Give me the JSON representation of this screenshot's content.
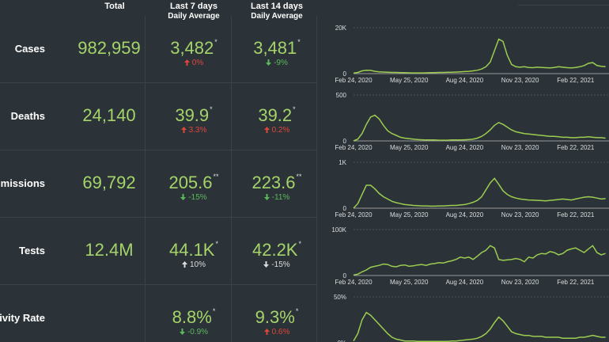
{
  "header": {
    "total": "Total",
    "last7": "Last 7 days",
    "last7_sub": "Daily Average",
    "last14": "Last 14 days",
    "last14_sub": "Daily Average"
  },
  "rows": [
    {
      "label": "Cases",
      "total": "982,959",
      "last7": {
        "value": "3,482",
        "note": "*",
        "change": "0%",
        "direction": "up",
        "change_color": "#e0453a"
      },
      "last14": {
        "value": "3,481",
        "note": "*",
        "change": "-9%",
        "direction": "down",
        "change_color": "#5cb85c"
      },
      "chart": {
        "type": "line",
        "color": "#9ccc50",
        "xlim": [
          0,
          60
        ],
        "xticks": [
          {
            "value": 0,
            "label": "Feb 24, 2020"
          },
          {
            "value": 13,
            "label": "May 25, 2020"
          },
          {
            "value": 26,
            "label": "Aug 24, 2020"
          },
          {
            "value": 39,
            "label": "Nov 23, 2020"
          },
          {
            "value": 52,
            "label": "Feb 22, 2021"
          }
        ],
        "ylim": [
          0,
          20000
        ],
        "yticks": [
          {
            "value": 0,
            "label": "0"
          },
          {
            "value": 20000,
            "label": "20K"
          }
        ],
        "values": [
          200,
          500,
          1200,
          1500,
          1400,
          1000,
          800,
          700,
          600,
          500,
          500,
          400,
          400,
          350,
          300,
          300,
          300,
          350,
          400,
          450,
          500,
          500,
          600,
          600,
          700,
          800,
          900,
          1000,
          1200,
          1500,
          2000,
          3000,
          5000,
          10000,
          15000,
          14000,
          8000,
          4000,
          3000,
          2800,
          3000,
          2700,
          2600,
          2800,
          2700,
          2600,
          2500,
          2700,
          3000,
          2800,
          2600,
          2500,
          2700,
          3000,
          3500,
          4500,
          4800,
          3500,
          3200,
          3000
        ]
      }
    },
    {
      "label": "Deaths",
      "total": "24,140",
      "last7": {
        "value": "39.9",
        "note": "*",
        "change": "3.3%",
        "direction": "up",
        "change_color": "#e0453a"
      },
      "last14": {
        "value": "39.2",
        "note": "*",
        "change": "0.2%",
        "direction": "up",
        "change_color": "#e0453a"
      },
      "chart": {
        "type": "line",
        "color": "#9ccc50",
        "xlim": [
          0,
          60
        ],
        "xticks": [
          {
            "value": 0,
            "label": "Feb 24, 2020"
          },
          {
            "value": 13,
            "label": "May 25, 2020"
          },
          {
            "value": 26,
            "label": "Aug 24, 2020"
          },
          {
            "value": 39,
            "label": "Nov 23, 2020"
          },
          {
            "value": 52,
            "label": "Feb 22, 2021"
          }
        ],
        "ylim": [
          0,
          500
        ],
        "yticks": [
          0,
          500
        ],
        "values": [
          0,
          20,
          80,
          180,
          260,
          280,
          240,
          170,
          110,
          80,
          60,
          40,
          30,
          25,
          20,
          15,
          12,
          10,
          10,
          10,
          8,
          8,
          8,
          10,
          10,
          10,
          12,
          15,
          20,
          30,
          50,
          80,
          120,
          170,
          200,
          180,
          150,
          120,
          100,
          90,
          80,
          75,
          70,
          65,
          60,
          55,
          50,
          50,
          45,
          40,
          40,
          35,
          35,
          40,
          40,
          45,
          40,
          35,
          35,
          30
        ]
      }
    },
    {
      "label": "Hospital Admissions",
      "total": "69,792",
      "last7": {
        "value": "205.6",
        "note": "**",
        "change": "-15%",
        "direction": "down",
        "change_color": "#5cb85c"
      },
      "last14": {
        "value": "223.6",
        "note": "**",
        "change": "-11%",
        "direction": "down",
        "change_color": "#5cb85c"
      },
      "chart": {
        "type": "line",
        "color": "#9ccc50",
        "xlim": [
          0,
          60
        ],
        "xticks": [
          {
            "value": 0,
            "label": "Feb 24, 2020"
          },
          {
            "value": 13,
            "label": "May 25, 2020"
          },
          {
            "value": 26,
            "label": "Aug 24, 2020"
          },
          {
            "value": 39,
            "label": "Nov 23, 2020"
          },
          {
            "value": 52,
            "label": "Feb 22, 2021"
          }
        ],
        "ylim": [
          0,
          1000
        ],
        "yticks": [
          {
            "value": 0,
            "label": "0"
          },
          {
            "value": 1000,
            "label": "1K"
          }
        ],
        "values": [
          0,
          100,
          300,
          500,
          500,
          420,
          320,
          250,
          200,
          150,
          120,
          100,
          80,
          70,
          60,
          55,
          50,
          50,
          45,
          45,
          50,
          50,
          55,
          60,
          60,
          70,
          80,
          100,
          130,
          170,
          250,
          400,
          550,
          650,
          520,
          380,
          300,
          250,
          220,
          200,
          190,
          180,
          175,
          170,
          165,
          160,
          170,
          180,
          190,
          200,
          190,
          180,
          200,
          220,
          240,
          250,
          240,
          220,
          200,
          210
        ]
      }
    },
    {
      "label": "Tests",
      "total": "12.4M",
      "last7": {
        "value": "44.1K",
        "note": "*",
        "change": "10%",
        "direction": "up",
        "change_color": "#dddddd"
      },
      "last14": {
        "value": "42.2K",
        "note": "*",
        "change": "-15%",
        "direction": "down",
        "change_color": "#dddddd"
      },
      "chart": {
        "type": "line",
        "color": "#9ccc50",
        "xlim": [
          0,
          60
        ],
        "xticks": [
          {
            "value": 0,
            "label": "Feb 24, 2020"
          },
          {
            "value": 13,
            "label": "May 25, 2020"
          },
          {
            "value": 26,
            "label": "Aug 24, 2020"
          },
          {
            "value": 39,
            "label": "Nov 23, 2020"
          },
          {
            "value": 52,
            "label": "Feb 22, 2021"
          }
        ],
        "ylim": [
          0,
          100000
        ],
        "yticks": [
          {
            "value": 0,
            "label": "0"
          },
          {
            "value": 100000,
            "label": "100K"
          }
        ],
        "values": [
          1000,
          3000,
          8000,
          12000,
          18000,
          20000,
          22000,
          25000,
          24000,
          20000,
          19000,
          22000,
          23000,
          20000,
          21000,
          23000,
          24000,
          22000,
          25000,
          26000,
          28000,
          27000,
          30000,
          32000,
          35000,
          40000,
          38000,
          40000,
          35000,
          42000,
          50000,
          55000,
          65000,
          60000,
          35000,
          33000,
          34000,
          35000,
          37000,
          35000,
          30000,
          40000,
          38000,
          45000,
          48000,
          47000,
          52000,
          50000,
          45000,
          48000,
          55000,
          58000,
          60000,
          55000,
          50000,
          58000,
          65000,
          50000,
          45000,
          48000
        ]
      }
    },
    {
      "label": "Positivity Rate",
      "last7": {
        "value": "8.8%",
        "note": "*",
        "change": "-0.9%",
        "direction": "down",
        "change_color": "#5cb85c"
      },
      "last14": {
        "value": "9.3%",
        "note": "*",
        "change": "0.6%",
        "direction": "up",
        "change_color": "#e0453a"
      },
      "chart": {
        "type": "line",
        "color": "#9ccc50",
        "xlim": [
          0,
          60
        ],
        "ylim": [
          0,
          50
        ],
        "yticks": [
          {
            "value": 0,
            "label": "0%"
          },
          {
            "value": 50,
            "label": "50%"
          }
        ],
        "values": [
          2,
          10,
          25,
          33,
          30,
          25,
          20,
          15,
          10,
          6,
          4,
          3,
          2,
          2,
          2,
          1.5,
          1.5,
          1.5,
          1.5,
          1.5,
          1.5,
          1.5,
          1.5,
          2,
          2,
          2.5,
          3,
          3.5,
          4,
          5,
          7,
          10,
          15,
          22,
          28,
          24,
          18,
          12,
          10,
          9,
          8,
          8,
          7,
          7,
          7,
          6,
          6,
          6,
          6,
          5,
          5,
          5,
          5,
          6,
          6,
          7,
          8,
          7,
          6,
          6
        ]
      }
    }
  ]
}
